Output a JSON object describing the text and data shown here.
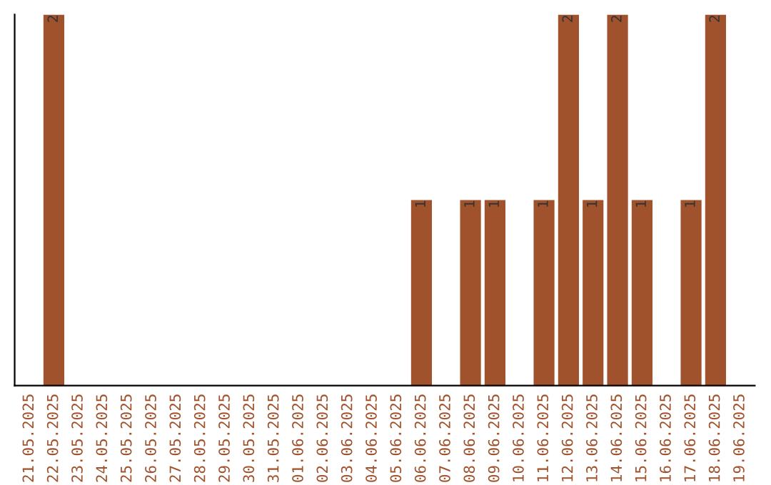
{
  "chart_data": {
    "type": "bar",
    "categories": [
      "21.05.2025",
      "22.05.2025",
      "23.05.2025",
      "24.05.2025",
      "25.05.2025",
      "26.05.2025",
      "27.05.2025",
      "28.05.2025",
      "29.05.2025",
      "30.05.2025",
      "31.05.2025",
      "01.06.2025",
      "02.06.2025",
      "03.06.2025",
      "04.06.2025",
      "05.06.2025",
      "06.06.2025",
      "07.06.2025",
      "08.06.2025",
      "09.06.2025",
      "10.06.2025",
      "11.06.2025",
      "12.06.2025",
      "13.06.2025",
      "14.06.2025",
      "15.06.2025",
      "16.06.2025",
      "17.06.2025",
      "18.06.2025",
      "19.06.2025"
    ],
    "values": [
      0,
      2,
      0,
      0,
      0,
      0,
      0,
      0,
      0,
      0,
      0,
      0,
      0,
      0,
      0,
      0,
      1,
      0,
      1,
      1,
      0,
      1,
      2,
      1,
      2,
      1,
      0,
      1,
      2,
      0
    ],
    "value_labels": [
      null,
      "2",
      null,
      null,
      null,
      null,
      null,
      null,
      null,
      null,
      null,
      null,
      null,
      null,
      null,
      null,
      "1",
      null,
      "1",
      "1",
      null,
      "1",
      "2",
      "1",
      "2",
      "1",
      null,
      "1",
      "2",
      null
    ],
    "color": "#a0522d",
    "grid": false,
    "legend": false
  }
}
